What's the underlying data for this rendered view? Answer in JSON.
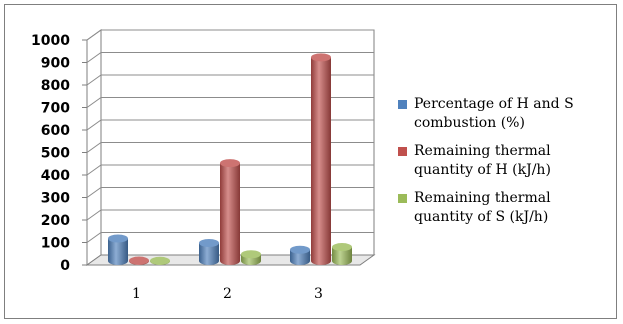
{
  "chart_data": {
    "type": "bar",
    "categories": [
      "1",
      "2",
      "3"
    ],
    "series": [
      {
        "name": "Percentage of H and S combustion (%)",
        "color": "#4f81bd",
        "values": [
          100,
          80,
          50
        ]
      },
      {
        "name": "Remaining thermal quantity of H (kJ/h)",
        "color": "#c0504d",
        "values": [
          2,
          435,
          905
        ]
      },
      {
        "name": "Remaining thermal quantity of S (kJ/h)",
        "color": "#9bbb59",
        "values": [
          1,
          30,
          62
        ]
      }
    ],
    "ylim": [
      0,
      1000
    ],
    "yticks": [
      0,
      100,
      200,
      300,
      400,
      500,
      600,
      700,
      800,
      900,
      1000
    ],
    "title": "",
    "xlabel": "",
    "ylabel": "",
    "grid": true,
    "legend_position": "right",
    "style": "3d-cylinder"
  }
}
